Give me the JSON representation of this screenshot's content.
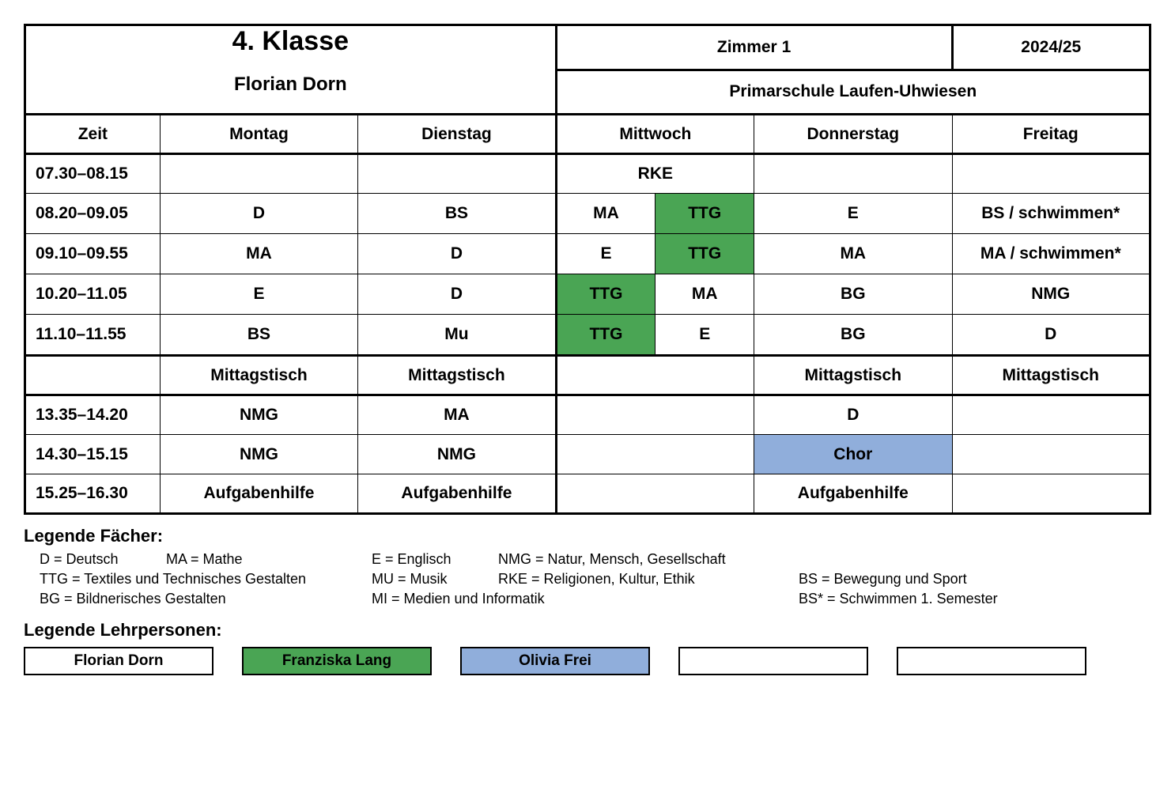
{
  "header": {
    "class_label": "4. Klasse",
    "teacher_main": "Florian Dorn",
    "room": "Zimmer 1",
    "year": "2024/25",
    "school": "Primarschule Laufen-Uhwiesen"
  },
  "days": {
    "time": "Zeit",
    "mon": "Montag",
    "tue": "Dienstag",
    "wed": "Mittwoch",
    "thu": "Donnerstag",
    "fri": "Freitag"
  },
  "colors": {
    "green": "#4aa554",
    "blue": "#90aedb",
    "white": "#ffffff"
  },
  "rows": [
    {
      "time": "07.30–08.15",
      "mon": "",
      "tue": "",
      "wedA": "RKE",
      "wedSplit": false,
      "wedB": "",
      "thu": "",
      "fri": ""
    },
    {
      "time": "08.20–09.05",
      "mon": "D",
      "tue": "BS",
      "wedA": "MA",
      "wedSplit": true,
      "wedB": "TTG",
      "wedBColor": "green",
      "thu": "E",
      "fri": "BS / schwimmen*"
    },
    {
      "time": "09.10–09.55",
      "mon": "MA",
      "tue": "D",
      "wedA": "E",
      "wedSplit": true,
      "wedB": "TTG",
      "wedBColor": "green",
      "thu": "MA",
      "fri": "MA / schwimmen*"
    },
    {
      "time": "10.20–11.05",
      "mon": "E",
      "tue": "D",
      "wedA": "TTG",
      "wedAColor": "green",
      "wedSplit": true,
      "wedB": "MA",
      "thu": "BG",
      "fri": "NMG"
    },
    {
      "time": "11.10–11.55",
      "mon": "BS",
      "tue": "Mu",
      "wedA": "TTG",
      "wedAColor": "green",
      "wedSplit": true,
      "wedB": "E",
      "thu": "BG",
      "fri": "D"
    },
    {
      "time": "",
      "mon": "Mittagstisch",
      "tue": "Mittagstisch",
      "wedA": "",
      "wedSplit": false,
      "wedB": "",
      "thu": "Mittagstisch",
      "fri": "Mittagstisch"
    },
    {
      "time": "13.35–14.20",
      "mon": "NMG",
      "tue": "MA",
      "wedA": "",
      "wedSplit": false,
      "wedB": "",
      "thu": "D",
      "fri": ""
    },
    {
      "time": "14.30–15.15",
      "mon": "NMG",
      "tue": "NMG",
      "wedA": "",
      "wedSplit": false,
      "wedB": "",
      "thu": "Chor",
      "thuColor": "blue",
      "fri": ""
    },
    {
      "time": "15.25–16.30",
      "mon": "Aufgabenhilfe",
      "tue": "Aufgabenhilfe",
      "wedA": "",
      "wedSplit": false,
      "wedB": "",
      "thu": "Aufgabenhilfe",
      "fri": ""
    }
  ],
  "legend": {
    "subjects_title": "Legende Fächer:",
    "subjects": {
      "D": "D = Deutsch",
      "MA": "MA = Mathe",
      "E": "E = Englisch",
      "NMG": "NMG = Natur, Mensch, Gesellschaft",
      "TTG": "TTG = Textiles und Technisches Gestalten",
      "MU": "MU = Musik",
      "RKE": "RKE = Religionen, Kultur, Ethik",
      "BS": "BS = Bewegung und Sport",
      "BG": "BG = Bildnerisches Gestalten",
      "MI": "MI = Medien und Informatik",
      "BSS": "BS* = Schwimmen 1. Semester"
    },
    "teachers_title": "Legende Lehrpersonen:",
    "teachers": [
      {
        "name": "Florian Dorn",
        "color": "white"
      },
      {
        "name": "Franziska Lang",
        "color": "green"
      },
      {
        "name": "Olivia Frei",
        "color": "blue"
      },
      {
        "name": "",
        "color": "white"
      },
      {
        "name": "",
        "color": "white"
      }
    ]
  },
  "layout": {
    "col_widths": [
      "150",
      "220",
      "220",
      "220",
      "220",
      "220"
    ]
  }
}
